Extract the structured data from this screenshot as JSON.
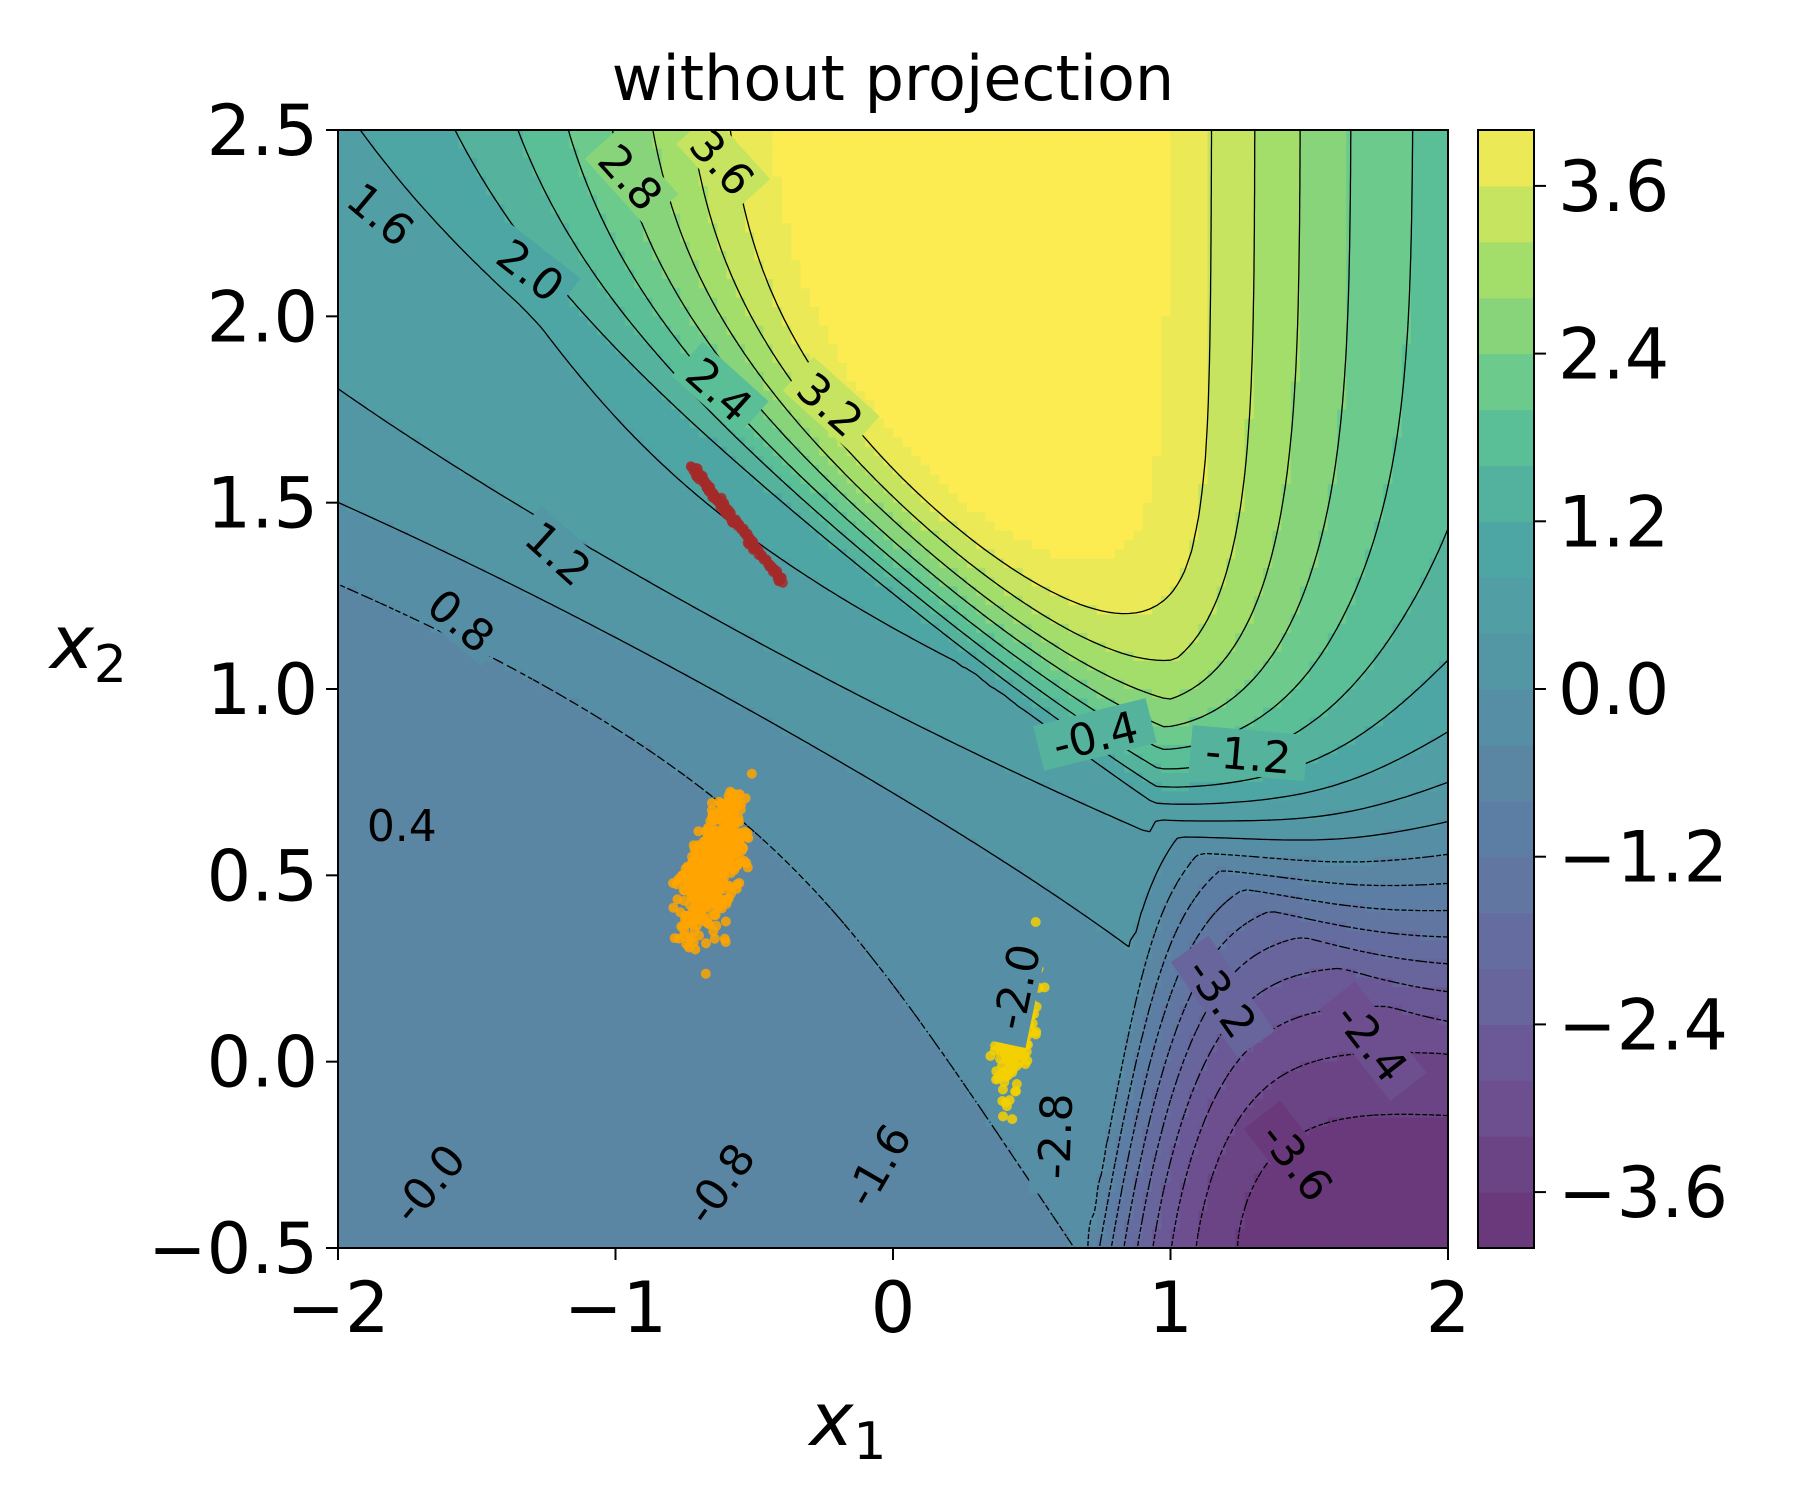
{
  "chart_data": {
    "type": "contour",
    "title": "without projection",
    "xlabel": "x",
    "xlabel_sub": "1",
    "ylabel": "x",
    "ylabel_sub": "2",
    "xlim": [
      -2,
      2
    ],
    "ylim": [
      -0.5,
      2.5
    ],
    "x_ticks": [
      -2,
      -1,
      0,
      1,
      2
    ],
    "x_tick_labels": [
      "−2",
      "−1",
      "0",
      "1",
      "2"
    ],
    "y_ticks": [
      -0.5,
      0.0,
      0.5,
      1.0,
      1.5,
      2.0,
      2.5
    ],
    "y_tick_labels": [
      "−0.5",
      "0.0",
      "0.5",
      "1.0",
      "1.5",
      "2.0",
      "2.5"
    ],
    "colormap": "viridis",
    "colorbar": {
      "range": [
        -4.0,
        4.0
      ],
      "ticks": [
        3.6,
        2.4,
        1.2,
        0.0,
        -1.2,
        -2.4,
        -3.6
      ],
      "tick_labels": [
        "3.6",
        "2.4",
        "1.2",
        "0.0",
        "−1.2",
        "−2.4",
        "−3.6"
      ]
    },
    "contour_levels_step": 0.4,
    "contour_labels": [
      {
        "text": "1.6",
        "x": -1.85,
        "y": 2.27,
        "angle": 40
      },
      {
        "text": "2.0",
        "x": -1.31,
        "y": 2.12,
        "angle": 38
      },
      {
        "text": "2.8",
        "x": -0.95,
        "y": 2.37,
        "angle": 48
      },
      {
        "text": "3.6",
        "x": -0.62,
        "y": 2.41,
        "angle": 48
      },
      {
        "text": "2.4",
        "x": -0.63,
        "y": 1.8,
        "angle": 42
      },
      {
        "text": "3.2",
        "x": -0.23,
        "y": 1.76,
        "angle": 42
      },
      {
        "text": "1.2",
        "x": -1.21,
        "y": 1.36,
        "angle": 42
      },
      {
        "text": "0.8",
        "x": -1.56,
        "y": 1.18,
        "angle": 40
      },
      {
        "text": "0.4",
        "x": -1.77,
        "y": 0.63,
        "angle": 0
      },
      {
        "text": "-0.0",
        "x": -1.67,
        "y": -0.33,
        "angle": -50
      },
      {
        "text": "-0.8",
        "x": -0.62,
        "y": -0.33,
        "angle": -55
      },
      {
        "text": "-1.6",
        "x": -0.05,
        "y": -0.28,
        "angle": -60
      },
      {
        "text": "-2.0",
        "x": 0.45,
        "y": 0.2,
        "angle": -78
      },
      {
        "text": "-2.8",
        "x": 0.59,
        "y": -0.2,
        "angle": -88
      },
      {
        "text": "-0.4",
        "x": 0.73,
        "y": 0.87,
        "angle": -14
      },
      {
        "text": "-1.2",
        "x": 1.28,
        "y": 0.82,
        "angle": 5
      },
      {
        "text": "-3.2",
        "x": 1.18,
        "y": 0.17,
        "angle": 55
      },
      {
        "text": "-3.6",
        "x": 1.45,
        "y": -0.27,
        "angle": 52
      },
      {
        "text": "-2.4",
        "x": 1.72,
        "y": 0.05,
        "angle": 52
      }
    ],
    "scatter_clusters": [
      {
        "color": "#ffa500",
        "center": [
          -0.65,
          0.52
        ],
        "spread": [
          0.08,
          0.14
        ],
        "tilt": 0.6,
        "count": 600
      },
      {
        "color": "#f5d000",
        "center": [
          0.45,
          0.13
        ],
        "spread": [
          0.05,
          0.16
        ],
        "tilt": 0.35,
        "count": 350
      },
      {
        "color": "#a52a2a",
        "line": [
          [
            -0.73,
            1.6
          ],
          [
            -0.4,
            1.29
          ]
        ],
        "count": 150
      }
    ]
  }
}
